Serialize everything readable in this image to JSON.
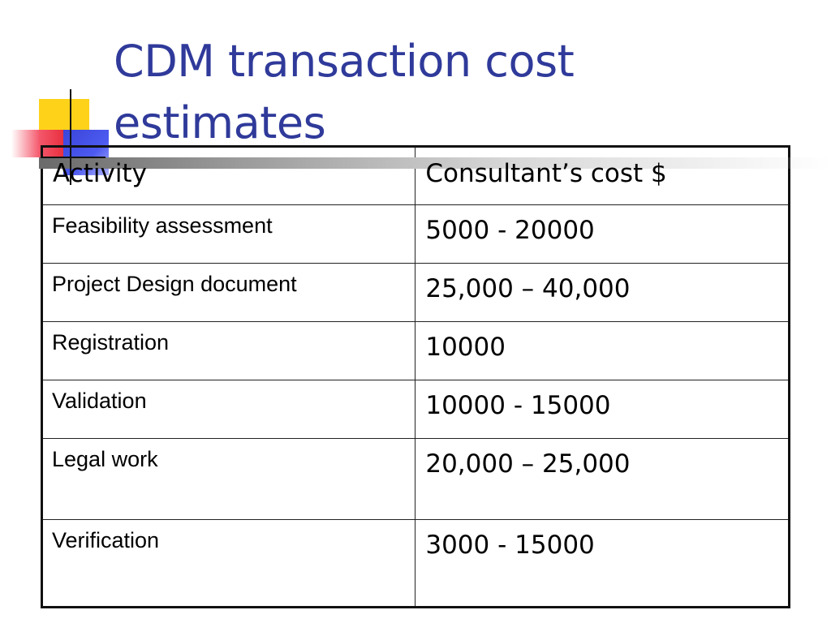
{
  "slide": {
    "title_line1": "CDM transaction cost",
    "title_line2": "estimates",
    "accent_color": "#2f3a9a"
  },
  "table": {
    "headers": [
      "Activity",
      "Consultant’s cost $"
    ],
    "rows": [
      {
        "activity": "Feasibility assessment",
        "cost": "5000 - 20000"
      },
      {
        "activity": "Project Design document",
        "cost": "25,000 – 40,000"
      },
      {
        "activity": "Registration",
        "cost": "10000"
      },
      {
        "activity": "Validation",
        "cost": "10000 - 15000"
      },
      {
        "activity": "Legal work",
        "cost": "20,000 – 25,000"
      },
      {
        "activity": "Verification",
        "cost": "3000 - 15000"
      }
    ]
  }
}
